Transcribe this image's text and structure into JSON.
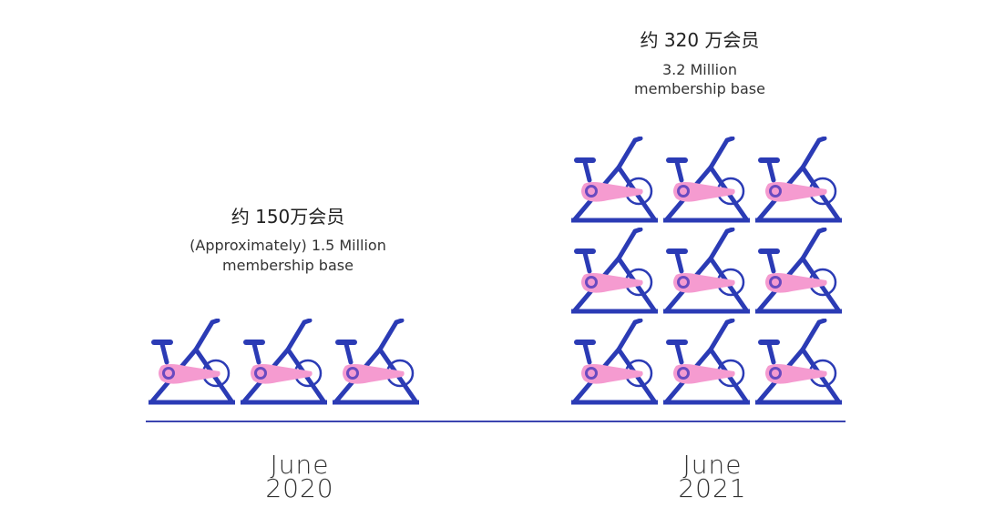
{
  "groups": [
    {
      "title": "约 150万会员",
      "subtitle_lines": [
        "(Approximately) 1.5 Million",
        "membership base"
      ],
      "month": "June",
      "year": "2020"
    },
    {
      "title": "约 320 万会员",
      "subtitle_lines": [
        "3.2 Million",
        "membership base"
      ],
      "month": "June",
      "year": "2021"
    }
  ]
}
